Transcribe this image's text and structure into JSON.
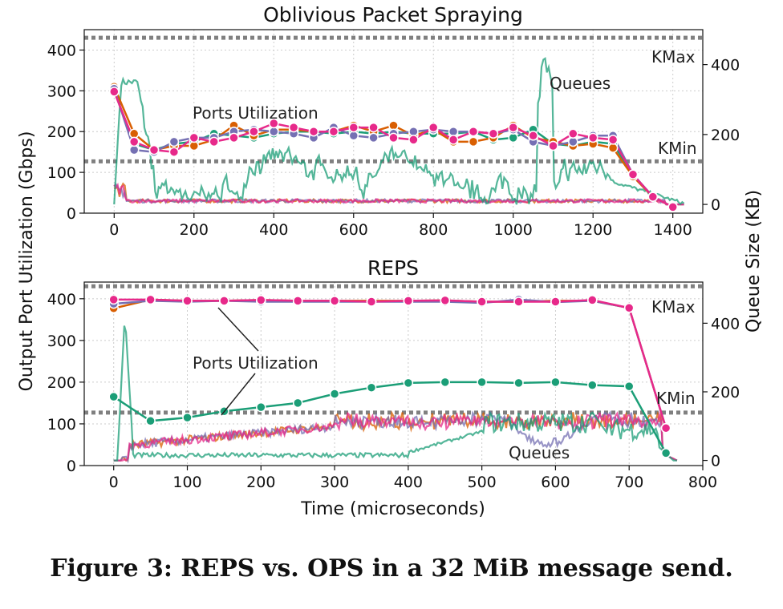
{
  "caption": "Figure 3: REPS vs. OPS in a 32 MiB message send.",
  "chart_data": [
    {
      "type": "line",
      "title": "Oblivious Packet Spraying",
      "xlabel": "Time (microseconds)",
      "ylabel": "Output Port Utilization (Gbps)",
      "y2label": "Queue Size (KB)",
      "xlim": [
        -75,
        1475
      ],
      "ylim": [
        0,
        450
      ],
      "y2lim": [
        -25,
        500
      ],
      "xticks": [
        "0",
        "200",
        "400",
        "600",
        "800",
        "1000",
        "1200",
        "1400"
      ],
      "xtick_values": [
        0,
        200,
        400,
        600,
        800,
        1000,
        1200,
        1400
      ],
      "yticks": [
        "0",
        "100",
        "200",
        "300",
        "400"
      ],
      "ytick_values": [
        0,
        100,
        200,
        300,
        400
      ],
      "y2ticks": [
        "0",
        "200",
        "400"
      ],
      "y2tick_values": [
        0,
        200,
        400
      ],
      "kmax": 430,
      "kmin": 127,
      "kmax_label": "KMax",
      "kmin_label": "KMin",
      "annotations": [
        "Ports Utilization",
        "Queues"
      ],
      "colors": [
        "#1b9e77",
        "#d95f02",
        "#7570b3",
        "#e7298a"
      ],
      "grid": true,
      "series": [
        {
          "values": [
            [
              0,
              300
            ],
            [
              50,
              170
            ],
            [
              100,
              155
            ],
            [
              150,
              170
            ],
            [
              200,
              175
            ],
            [
              250,
              195
            ],
            [
              300,
              190
            ],
            [
              350,
              185
            ],
            [
              400,
              195
            ],
            [
              450,
              200
            ],
            [
              500,
              200
            ],
            [
              550,
              195
            ],
            [
              600,
              200
            ],
            [
              650,
              195
            ],
            [
              700,
              200
            ],
            [
              750,
              195
            ],
            [
              800,
              195
            ],
            [
              850,
              195
            ],
            [
              900,
              200
            ],
            [
              950,
              180
            ],
            [
              1000,
              185
            ],
            [
              1050,
              205
            ],
            [
              1100,
              170
            ],
            [
              1150,
              165
            ],
            [
              1200,
              175
            ],
            [
              1250,
              170
            ],
            [
              1300,
              95
            ],
            [
              1350,
              40
            ],
            [
              1400,
              15
            ]
          ]
        },
        {
          "values": [
            [
              0,
              310
            ],
            [
              50,
              195
            ],
            [
              100,
              155
            ],
            [
              150,
              165
            ],
            [
              200,
              165
            ],
            [
              250,
              180
            ],
            [
              300,
              215
            ],
            [
              350,
              190
            ],
            [
              400,
              205
            ],
            [
              450,
              205
            ],
            [
              500,
              200
            ],
            [
              550,
              200
            ],
            [
              600,
              215
            ],
            [
              650,
              200
            ],
            [
              700,
              215
            ],
            [
              750,
              190
            ],
            [
              800,
              205
            ],
            [
              850,
              175
            ],
            [
              900,
              175
            ],
            [
              950,
              185
            ],
            [
              1000,
              215
            ],
            [
              1050,
              185
            ],
            [
              1100,
              175
            ],
            [
              1150,
              165
            ],
            [
              1200,
              170
            ],
            [
              1250,
              160
            ],
            [
              1300,
              90
            ],
            [
              1350,
              40
            ],
            [
              1400,
              15
            ]
          ]
        },
        {
          "values": [
            [
              0,
              305
            ],
            [
              50,
              155
            ],
            [
              100,
              150
            ],
            [
              150,
              175
            ],
            [
              200,
              185
            ],
            [
              250,
              185
            ],
            [
              300,
              200
            ],
            [
              350,
              205
            ],
            [
              400,
              200
            ],
            [
              450,
              195
            ],
            [
              500,
              185
            ],
            [
              550,
              210
            ],
            [
              600,
              190
            ],
            [
              650,
              185
            ],
            [
              700,
              195
            ],
            [
              750,
              200
            ],
            [
              800,
              205
            ],
            [
              850,
              200
            ],
            [
              900,
              200
            ],
            [
              950,
              195
            ],
            [
              1000,
              205
            ],
            [
              1050,
              175
            ],
            [
              1100,
              165
            ],
            [
              1150,
              175
            ],
            [
              1200,
              190
            ],
            [
              1250,
              190
            ],
            [
              1300,
              95
            ],
            [
              1350,
              40
            ],
            [
              1400,
              15
            ]
          ]
        },
        {
          "values": [
            [
              0,
              298
            ],
            [
              50,
              175
            ],
            [
              100,
              155
            ],
            [
              150,
              150
            ],
            [
              200,
              185
            ],
            [
              250,
              175
            ],
            [
              300,
              185
            ],
            [
              350,
              200
            ],
            [
              400,
              220
            ],
            [
              450,
              210
            ],
            [
              500,
              200
            ],
            [
              550,
              200
            ],
            [
              600,
              210
            ],
            [
              650,
              210
            ],
            [
              700,
              185
            ],
            [
              750,
              180
            ],
            [
              800,
              210
            ],
            [
              850,
              180
            ],
            [
              900,
              200
            ],
            [
              950,
              195
            ],
            [
              1000,
              210
            ],
            [
              1050,
              190
            ],
            [
              1100,
              165
            ],
            [
              1150,
              195
            ],
            [
              1200,
              185
            ],
            [
              1250,
              180
            ],
            [
              1300,
              95
            ],
            [
              1350,
              40
            ],
            [
              1400,
              15
            ]
          ]
        }
      ]
    },
    {
      "type": "line",
      "title": "REPS",
      "xlabel": "Time (microseconds)",
      "ylabel": "Output Port Utilization (Gbps)",
      "y2label": "Queue Size (KB)",
      "xlim": [
        -40,
        800
      ],
      "ylim": [
        0,
        440
      ],
      "y2lim": [
        -15,
        520
      ],
      "xticks": [
        "0",
        "100",
        "200",
        "300",
        "400",
        "500",
        "600",
        "700",
        "800"
      ],
      "xtick_values": [
        0,
        100,
        200,
        300,
        400,
        500,
        600,
        700,
        800
      ],
      "yticks": [
        "0",
        "100",
        "200",
        "300",
        "400"
      ],
      "ytick_values": [
        0,
        100,
        200,
        300,
        400
      ],
      "y2ticks": [
        "0",
        "200",
        "400"
      ],
      "y2tick_values": [
        0,
        200,
        400
      ],
      "kmax": 430,
      "kmin": 127,
      "kmax_label": "KMax",
      "kmin_label": "KMin",
      "annotations": [
        "Ports Utilization",
        "Queues"
      ],
      "colors": [
        "#1b9e77",
        "#d95f02",
        "#7570b3",
        "#e7298a"
      ],
      "grid": true,
      "series": [
        {
          "values": [
            [
              0,
              165
            ],
            [
              50,
              107
            ],
            [
              100,
              115
            ],
            [
              150,
              130
            ],
            [
              200,
              140
            ],
            [
              250,
              150
            ],
            [
              300,
              172
            ],
            [
              350,
              187
            ],
            [
              400,
              198
            ],
            [
              450,
              200
            ],
            [
              500,
              200
            ],
            [
              550,
              198
            ],
            [
              600,
              200
            ],
            [
              650,
              193
            ],
            [
              700,
              190
            ],
            [
              750,
              30
            ]
          ]
        },
        {
          "values": [
            [
              0,
              377
            ],
            [
              50,
              398
            ],
            [
              100,
              395
            ],
            [
              150,
              395
            ],
            [
              200,
              397
            ],
            [
              250,
              395
            ],
            [
              300,
              395
            ],
            [
              350,
              395
            ],
            [
              400,
              395
            ],
            [
              450,
              396
            ],
            [
              500,
              393
            ],
            [
              550,
              393
            ],
            [
              600,
              395
            ],
            [
              650,
              395
            ],
            [
              700,
              378
            ],
            [
              750,
              90
            ]
          ]
        },
        {
          "values": [
            [
              0,
              388
            ],
            [
              50,
              395
            ],
            [
              100,
              393
            ],
            [
              150,
              395
            ],
            [
              200,
              393
            ],
            [
              250,
              393
            ],
            [
              300,
              393
            ],
            [
              350,
              393
            ],
            [
              400,
              393
            ],
            [
              450,
              393
            ],
            [
              500,
              390
            ],
            [
              550,
              398
            ],
            [
              600,
              392
            ],
            [
              650,
              395
            ],
            [
              700,
              378
            ],
            [
              750,
              90
            ]
          ]
        },
        {
          "values": [
            [
              0,
              398
            ],
            [
              50,
              398
            ],
            [
              100,
              395
            ],
            [
              150,
              395
            ],
            [
              200,
              397
            ],
            [
              250,
              395
            ],
            [
              300,
              395
            ],
            [
              350,
              393
            ],
            [
              400,
              395
            ],
            [
              450,
              396
            ],
            [
              500,
              393
            ],
            [
              550,
              393
            ],
            [
              600,
              393
            ],
            [
              650,
              397
            ],
            [
              700,
              378
            ],
            [
              750,
              90
            ]
          ]
        }
      ]
    }
  ]
}
